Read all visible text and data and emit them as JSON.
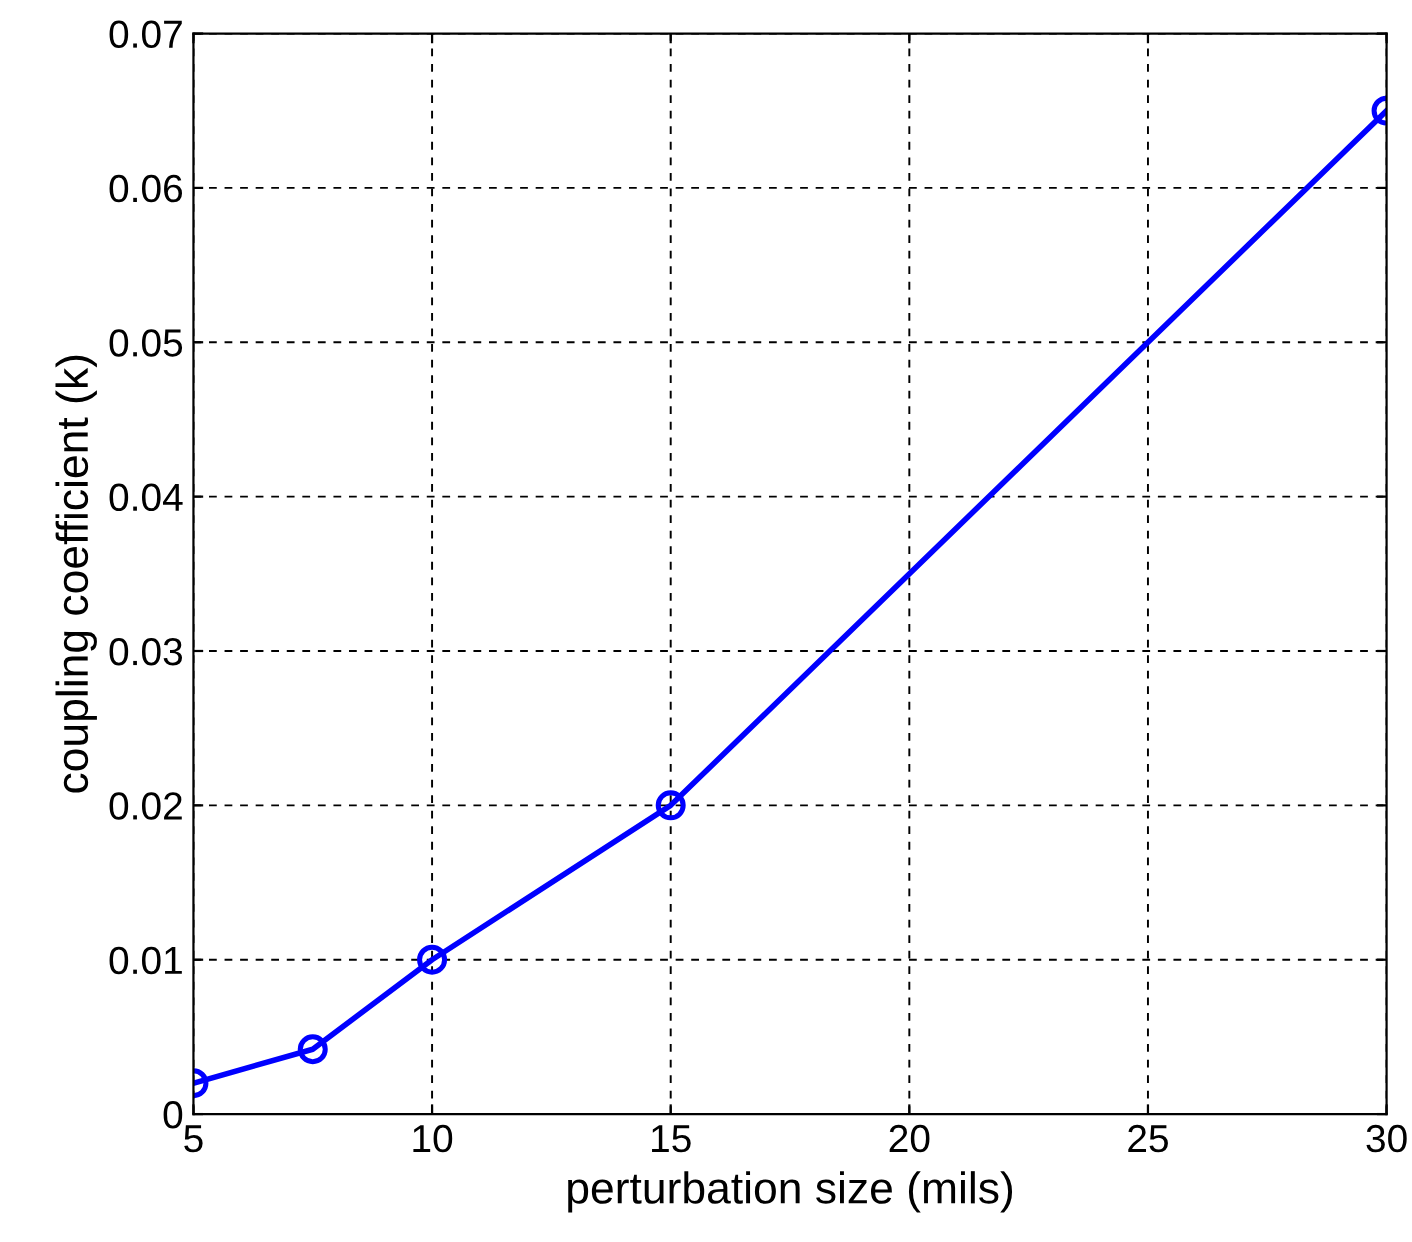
{
  "chart_data": {
    "type": "line",
    "xlabel": "perturbation size (mils)",
    "ylabel": "coupling coefficient (k)",
    "x": [
      5,
      7.5,
      10,
      15,
      30
    ],
    "series": [
      {
        "color": "#0000ff",
        "values": [
          0.002,
          0.0042,
          0.01,
          0.02,
          0.065
        ]
      }
    ],
    "xlim": [
      5,
      30
    ],
    "xticks": [
      5,
      10,
      15,
      20,
      25,
      30
    ],
    "ylim": [
      0,
      0.07
    ],
    "yticks": [
      0,
      0.01,
      0.02,
      0.03,
      0.04,
      0.05,
      0.06,
      0.07
    ],
    "grid": true,
    "marker": "circle",
    "line_style": "solid"
  }
}
